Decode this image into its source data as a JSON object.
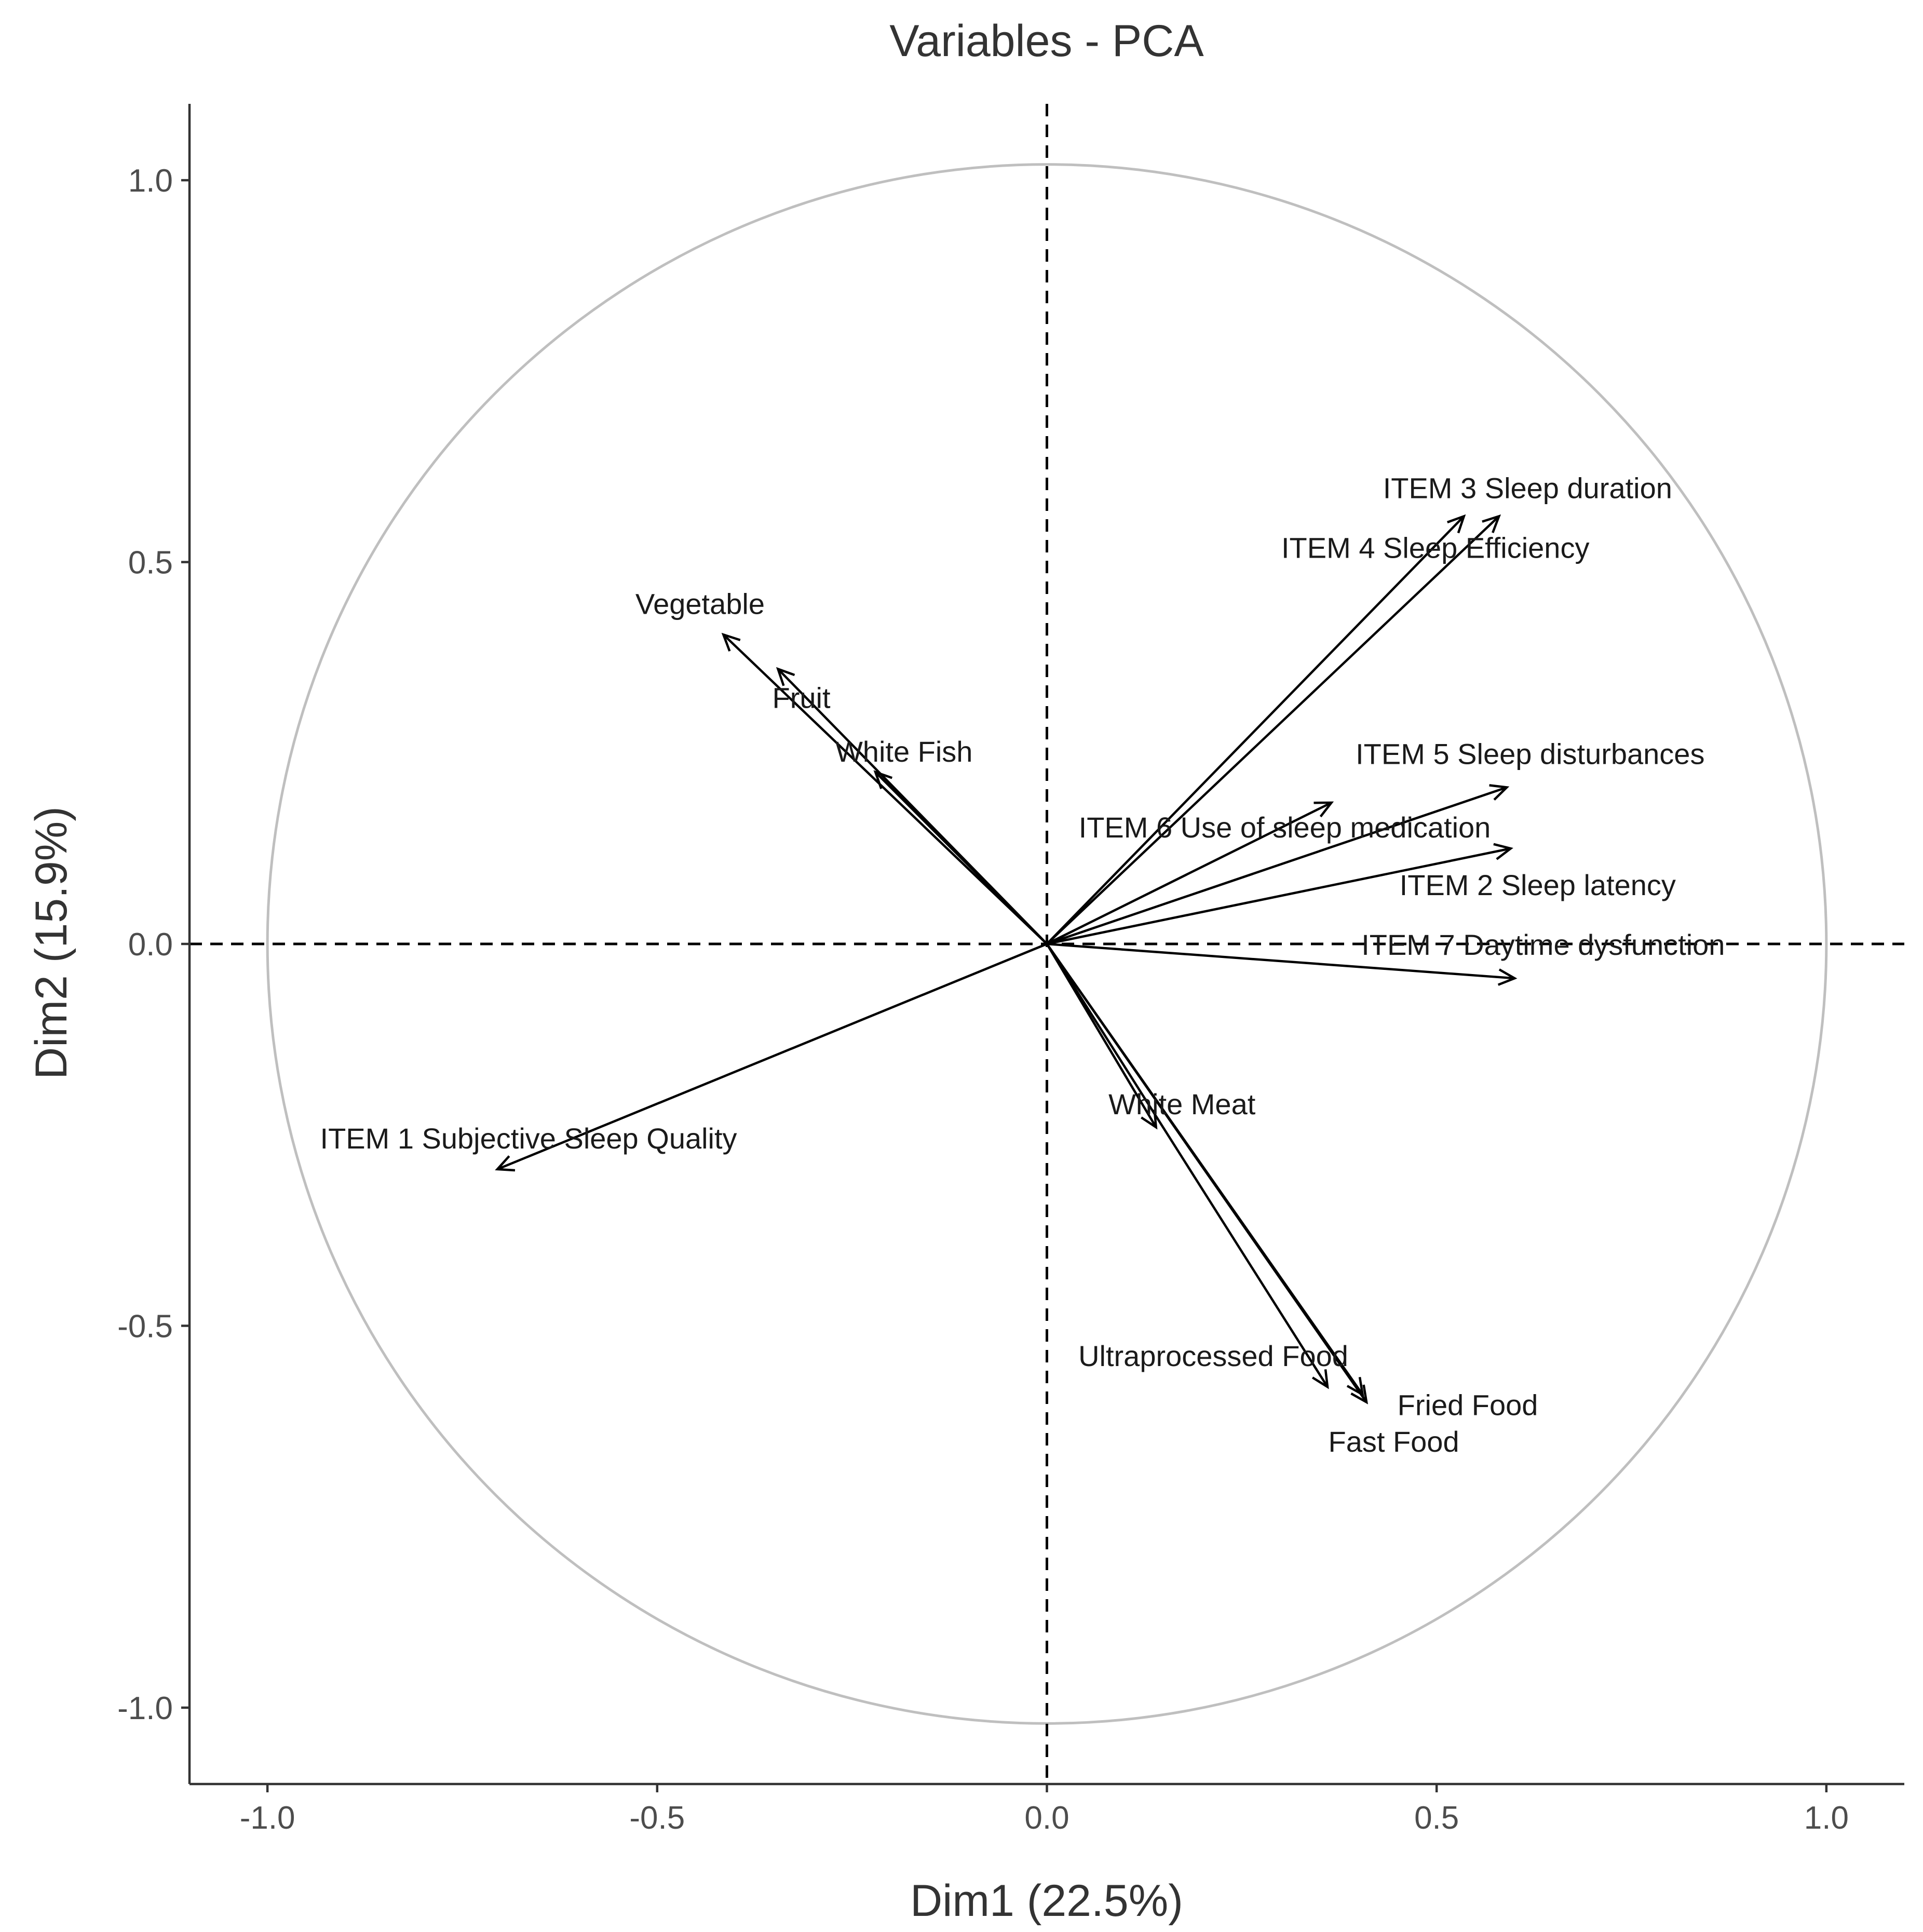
{
  "chart_data": {
    "type": "scatter",
    "title": "Variables - PCA",
    "xlabel": "Dim1 (22.5%)",
    "ylabel": "Dim2 (15.9%)",
    "xlim": [
      -1.1,
      1.1
    ],
    "ylim": [
      -1.1,
      1.1
    ],
    "xticks": [
      -1.0,
      -0.5,
      0.0,
      0.5,
      1.0
    ],
    "yticks": [
      -1.0,
      -0.5,
      0.0,
      0.5,
      1.0
    ],
    "xtick_labels": [
      "-1.0",
      "-0.5",
      "0.0",
      "0.5",
      "1.0"
    ],
    "ytick_labels": [
      "-1.0",
      "-0.5",
      "0.0",
      "0.5",
      "1.0"
    ],
    "unit_circle": true,
    "reference_lines": {
      "x": 0.0,
      "y": 0.0,
      "style": "dashed"
    },
    "variables": [
      {
        "name": "ITEM 3 Sleep duration",
        "x": 0.58,
        "y": 0.56
      },
      {
        "name": "ITEM 4 Sleep Efficiency",
        "x": 0.535,
        "y": 0.56
      },
      {
        "name": "Vegetable",
        "x": -0.415,
        "y": 0.405
      },
      {
        "name": "Fruit",
        "x": -0.345,
        "y": 0.36
      },
      {
        "name": "White Fish",
        "x": -0.22,
        "y": 0.225
      },
      {
        "name": "ITEM 5 Sleep disturbances",
        "x": 0.59,
        "y": 0.205
      },
      {
        "name": "ITEM 6 Use of sleep medication",
        "x": 0.365,
        "y": 0.185
      },
      {
        "name": "ITEM 2 Sleep latency",
        "x": 0.595,
        "y": 0.125
      },
      {
        "name": "ITEM 7 Daytime dysfunction",
        "x": 0.6,
        "y": -0.045
      },
      {
        "name": "White Meat",
        "x": 0.14,
        "y": -0.24
      },
      {
        "name": "ITEM 1 Subjective Sleep Quality",
        "x": -0.705,
        "y": -0.295
      },
      {
        "name": "Ultraprocessed Food",
        "x": 0.36,
        "y": -0.58
      },
      {
        "name": "Fried Food",
        "x": 0.41,
        "y": -0.6
      },
      {
        "name": "Fast Food",
        "x": 0.405,
        "y": -0.59
      }
    ]
  }
}
